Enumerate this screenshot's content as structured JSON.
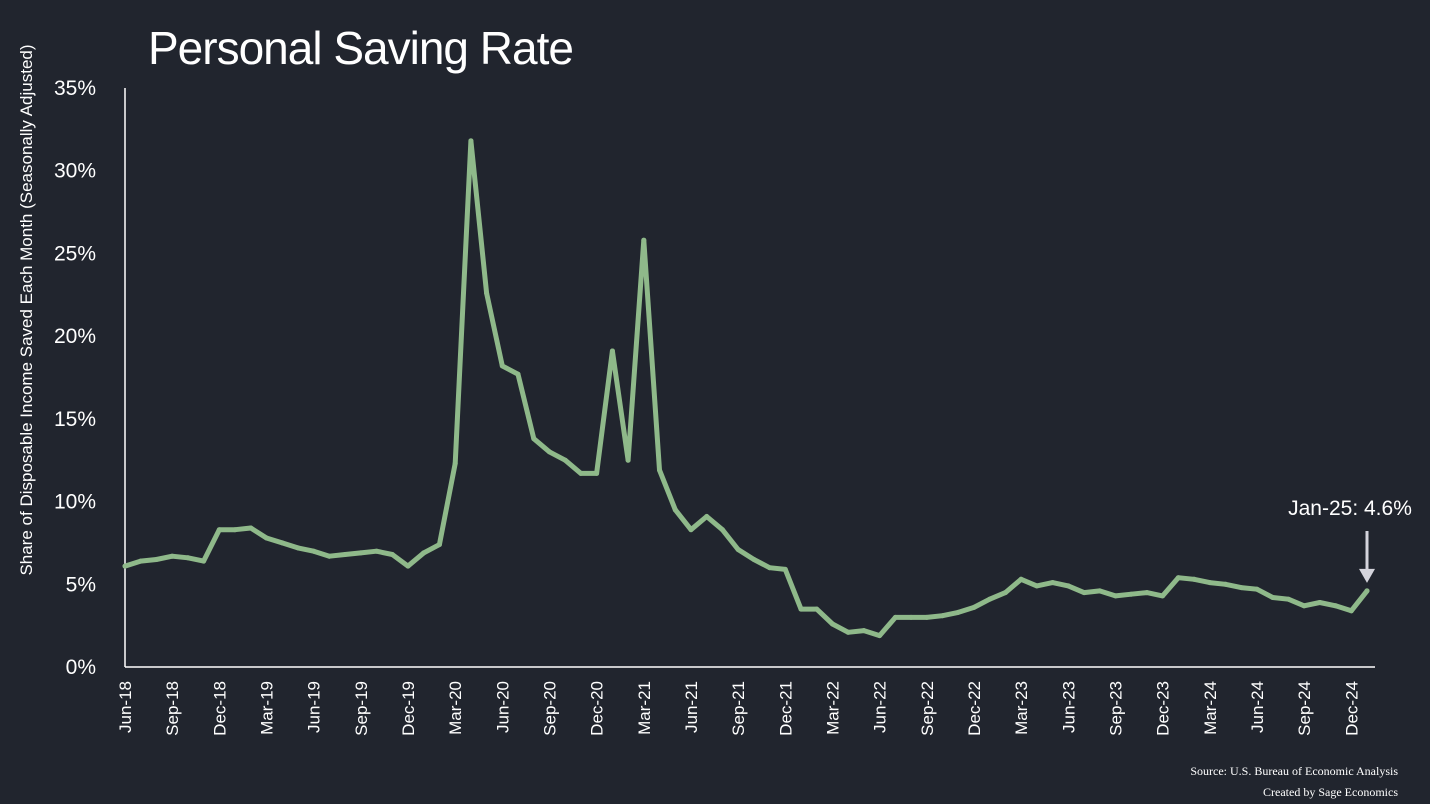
{
  "chart_data": {
    "type": "line",
    "title": "Personal Saving Rate",
    "ylabel": "Share of Disposable Income Saved Each Month (Seasonally Adjusted)",
    "xlabel": "",
    "ylim": [
      0,
      35
    ],
    "yticks": [
      0,
      5,
      10,
      15,
      20,
      25,
      30,
      35
    ],
    "ytick_labels": [
      "0%",
      "5%",
      "10%",
      "15%",
      "20%",
      "25%",
      "30%",
      "35%"
    ],
    "grid": false,
    "series_color": "#8fb98a",
    "categories": [
      "Jun-18",
      "Jul-18",
      "Aug-18",
      "Sep-18",
      "Oct-18",
      "Nov-18",
      "Dec-18",
      "Jan-19",
      "Feb-19",
      "Mar-19",
      "Apr-19",
      "May-19",
      "Jun-19",
      "Jul-19",
      "Aug-19",
      "Sep-19",
      "Oct-19",
      "Nov-19",
      "Dec-19",
      "Jan-20",
      "Feb-20",
      "Mar-20",
      "Apr-20",
      "May-20",
      "Jun-20",
      "Jul-20",
      "Aug-20",
      "Sep-20",
      "Oct-20",
      "Nov-20",
      "Dec-20",
      "Jan-21",
      "Feb-21",
      "Mar-21",
      "Apr-21",
      "May-21",
      "Jun-21",
      "Jul-21",
      "Aug-21",
      "Sep-21",
      "Oct-21",
      "Nov-21",
      "Dec-21",
      "Jan-22",
      "Feb-22",
      "Mar-22",
      "Apr-22",
      "May-22",
      "Jun-22",
      "Jul-22",
      "Aug-22",
      "Sep-22",
      "Oct-22",
      "Nov-22",
      "Dec-22",
      "Jan-23",
      "Feb-23",
      "Mar-23",
      "Apr-23",
      "May-23",
      "Jun-23",
      "Jul-23",
      "Aug-23",
      "Sep-23",
      "Oct-23",
      "Nov-23",
      "Dec-23",
      "Jan-24",
      "Feb-24",
      "Mar-24",
      "Apr-24",
      "May-24",
      "Jun-24",
      "Jul-24",
      "Aug-24",
      "Sep-24",
      "Oct-24",
      "Nov-24",
      "Dec-24",
      "Jan-25"
    ],
    "tick_labels": [
      "Jun-18",
      "Sep-18",
      "Dec-18",
      "Mar-19",
      "Jun-19",
      "Sep-19",
      "Dec-19",
      "Mar-20",
      "Jun-20",
      "Sep-20",
      "Dec-20",
      "Mar-21",
      "Jun-21",
      "Sep-21",
      "Dec-21",
      "Mar-22",
      "Jun-22",
      "Sep-22",
      "Dec-22",
      "Mar-23",
      "Jun-23",
      "Sep-23",
      "Dec-23",
      "Mar-24",
      "Jun-24",
      "Sep-24",
      "Dec-24"
    ],
    "series": [
      {
        "name": "Personal Saving Rate",
        "values": [
          6.1,
          6.4,
          6.5,
          6.7,
          6.6,
          6.4,
          8.3,
          8.3,
          8.4,
          7.8,
          7.5,
          7.2,
          7.0,
          6.7,
          6.8,
          6.9,
          7.0,
          6.8,
          6.1,
          6.9,
          7.4,
          12.3,
          31.8,
          22.6,
          18.2,
          17.7,
          13.8,
          13.0,
          12.5,
          11.7,
          11.7,
          19.1,
          12.5,
          25.8,
          11.9,
          9.5,
          8.3,
          9.1,
          8.3,
          7.1,
          6.5,
          6.0,
          5.9,
          3.5,
          3.5,
          2.6,
          2.1,
          2.2,
          1.9,
          3.0,
          3.0,
          3.0,
          3.1,
          3.3,
          3.6,
          4.1,
          4.5,
          5.3,
          4.9,
          5.1,
          4.9,
          4.5,
          4.6,
          4.3,
          4.4,
          4.5,
          4.3,
          5.4,
          5.3,
          5.1,
          5.0,
          4.8,
          4.7,
          4.2,
          4.1,
          3.7,
          3.9,
          3.7,
          3.4,
          4.6
        ]
      }
    ],
    "annotation": {
      "text": "Jan-25: 4.6%",
      "category": "Jan-25",
      "value": 4.6,
      "arrow_color": "#d4d4dc"
    },
    "source_lines": [
      "Source: U.S. Bureau of Economic Analysis",
      "Created by Sage Economics"
    ]
  }
}
